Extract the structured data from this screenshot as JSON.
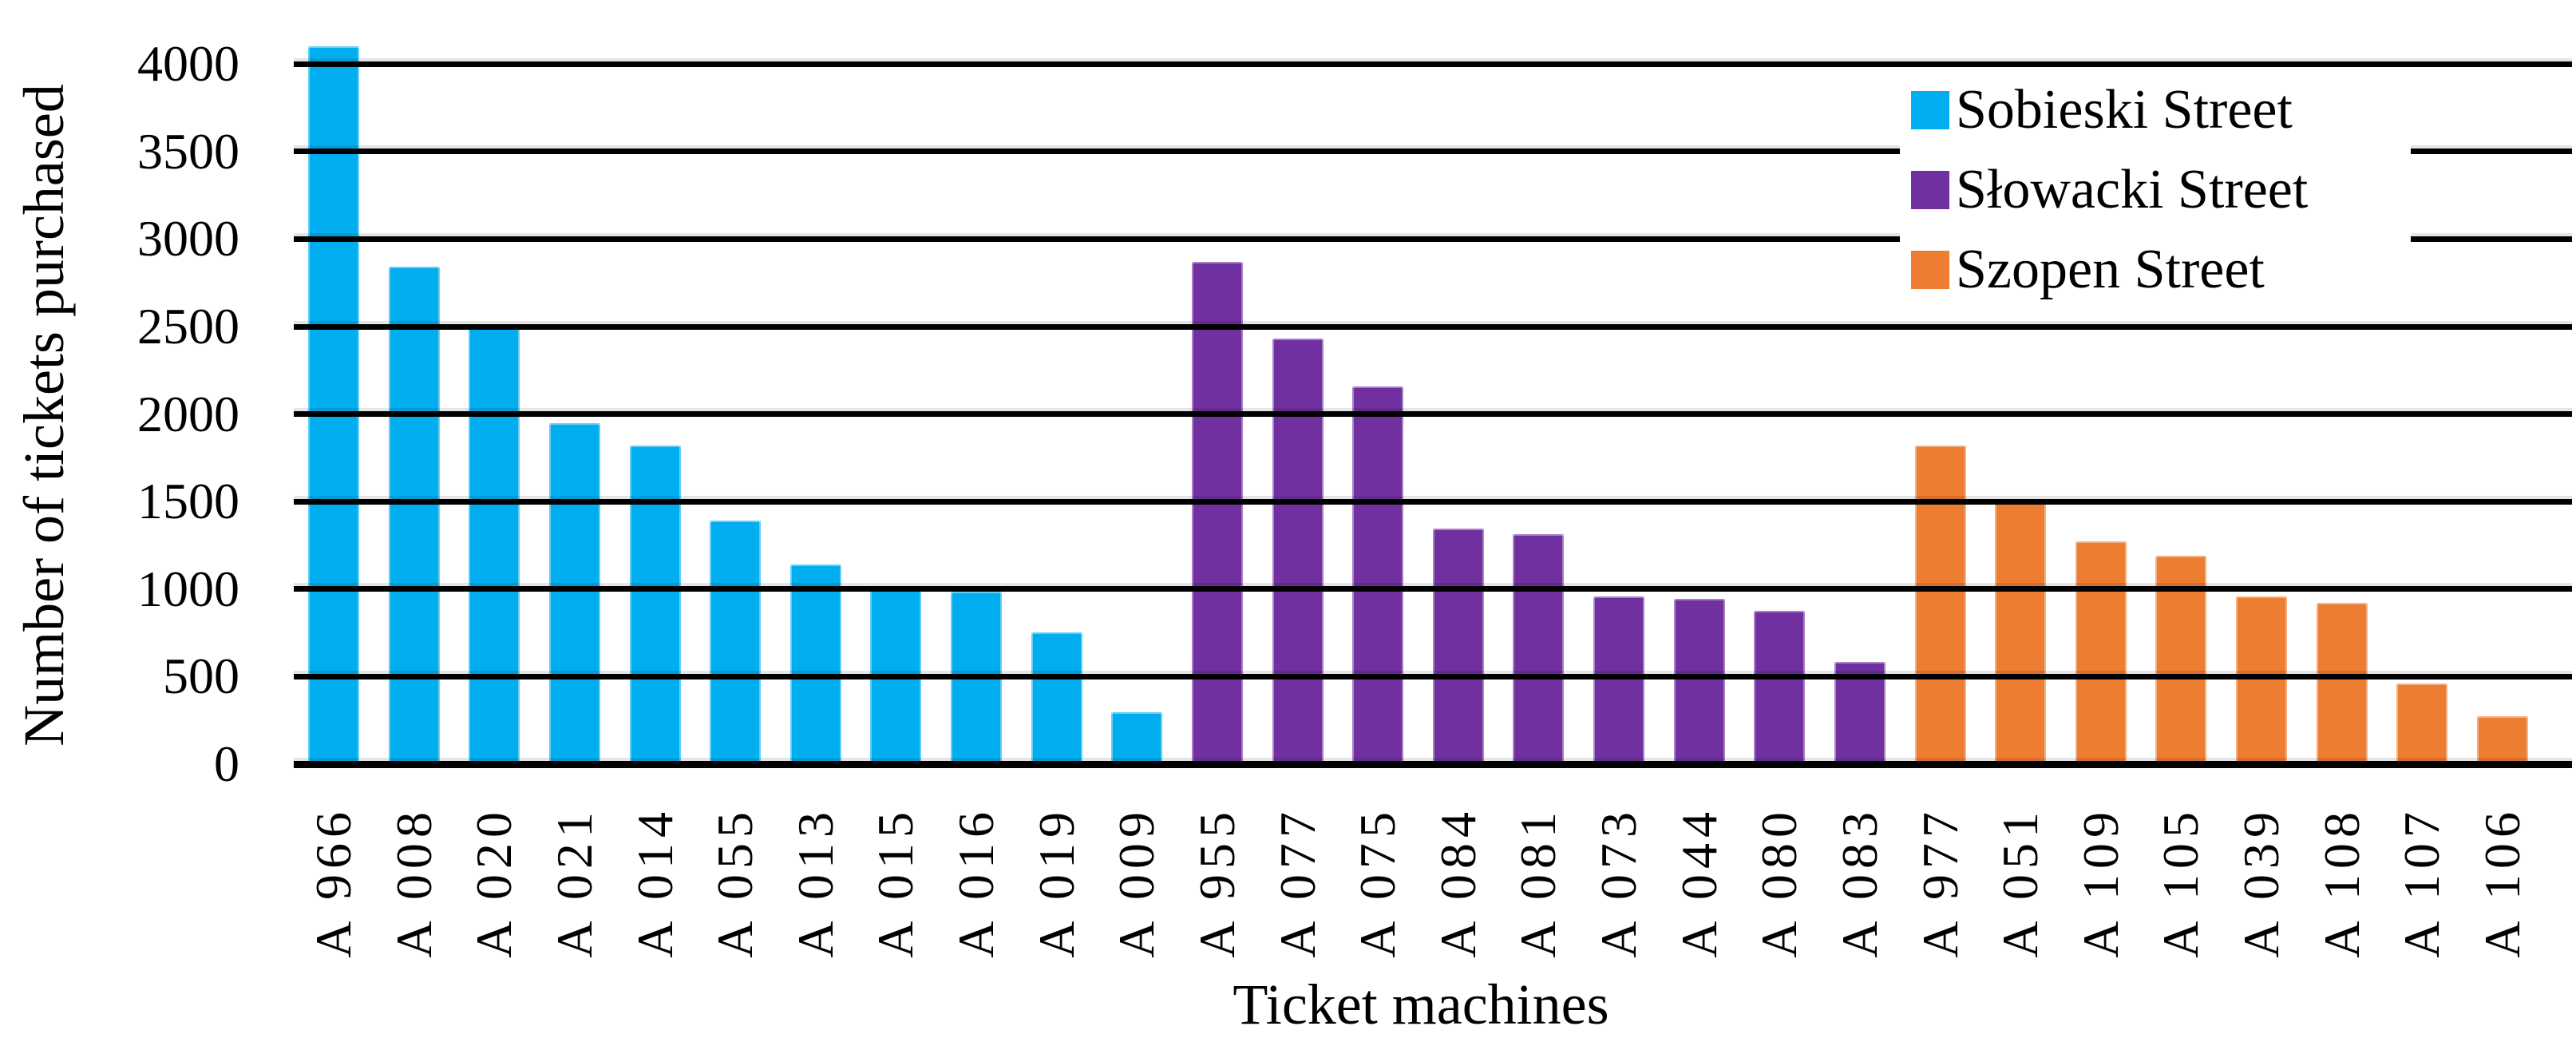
{
  "chart": {
    "y_axis_title": "Number of tickets purchased",
    "x_axis_title": "Ticket machines"
  },
  "chart_data": {
    "type": "bar",
    "title": "",
    "xlabel": "Ticket machines",
    "ylabel": "Number of tickets purchased",
    "ylim": [
      0,
      4000
    ],
    "y_ticks": [
      0,
      500,
      1000,
      1500,
      2000,
      2500,
      3000,
      3500,
      4000
    ],
    "grid": "horizontal",
    "legend_position": "top-right",
    "categories": [
      "A 966",
      "A 008",
      "A 020",
      "A 021",
      "A 014",
      "A 055",
      "A 013",
      "A 015",
      "A 016",
      "A 019",
      "A 009",
      "A 955",
      "A 077",
      "A 075",
      "A 084",
      "A 081",
      "A 073",
      "A 044",
      "A 080",
      "A 083",
      "A 977",
      "A 051",
      "A 109",
      "A 105",
      "A 039",
      "A 108",
      "A 107",
      "A 106"
    ],
    "series": [
      {
        "name": "Sobieski Street",
        "color": "#00AEEF",
        "machines": [
          {
            "id": "A 966",
            "value": 4100
          },
          {
            "id": "A 008",
            "value": 2840
          },
          {
            "id": "A 020",
            "value": 2490
          },
          {
            "id": "A 021",
            "value": 1950
          },
          {
            "id": "A 014",
            "value": 1820
          },
          {
            "id": "A 055",
            "value": 1390
          },
          {
            "id": "A 013",
            "value": 1140
          },
          {
            "id": "A 015",
            "value": 1000
          },
          {
            "id": "A 016",
            "value": 985
          },
          {
            "id": "A 019",
            "value": 755
          },
          {
            "id": "A 009",
            "value": 295
          }
        ]
      },
      {
        "name": "Słowacki Street",
        "color": "#7030A0",
        "machines": [
          {
            "id": "A 955",
            "value": 2870
          },
          {
            "id": "A 077",
            "value": 2430
          },
          {
            "id": "A 075",
            "value": 2160
          },
          {
            "id": "A 084",
            "value": 1345
          },
          {
            "id": "A 081",
            "value": 1315
          },
          {
            "id": "A 073",
            "value": 960
          },
          {
            "id": "A 044",
            "value": 945
          },
          {
            "id": "A 080",
            "value": 875
          },
          {
            "id": "A 083",
            "value": 585
          }
        ]
      },
      {
        "name": "Szopen Street",
        "color": "#ED7D31",
        "machines": [
          {
            "id": "A 977",
            "value": 1820
          },
          {
            "id": "A 051",
            "value": 1495
          },
          {
            "id": "A 109",
            "value": 1275
          },
          {
            "id": "A 105",
            "value": 1190
          },
          {
            "id": "A 039",
            "value": 960
          },
          {
            "id": "A 108",
            "value": 920
          },
          {
            "id": "A 107",
            "value": 460
          },
          {
            "id": "A 106",
            "value": 275
          }
        ]
      }
    ]
  }
}
